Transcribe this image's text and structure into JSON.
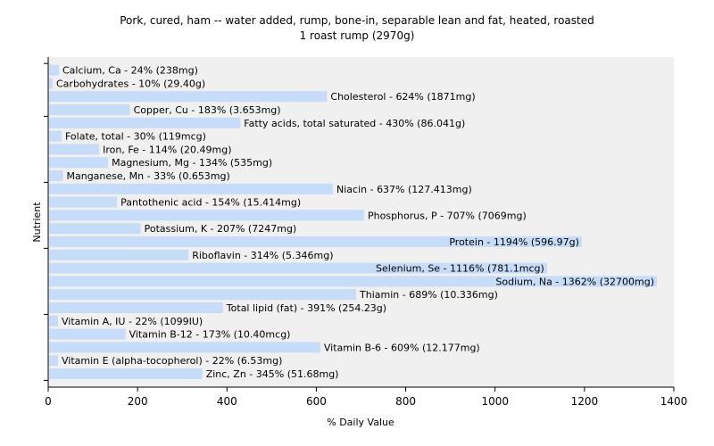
{
  "chart_data": {
    "type": "bar",
    "orientation": "horizontal",
    "title": [
      "Pork, cured, ham -- water added, rump, bone-in, separable lean and fat, heated, roasted",
      "1 roast rump (2970g)"
    ],
    "xlabel": "% Daily Value",
    "ylabel": "Nutrient",
    "xlim": [
      0,
      1400
    ],
    "xticks": [
      0,
      200,
      400,
      600,
      800,
      1000,
      1200,
      1400
    ],
    "grid": false,
    "bar_color": "#c6dcf8",
    "background": "#f0f0f0",
    "categories": [
      "Calcium, Ca",
      "Carbohydrates",
      "Cholesterol",
      "Copper, Cu",
      "Fatty acids, total saturated",
      "Folate, total",
      "Iron, Fe",
      "Magnesium, Mg",
      "Manganese, Mn",
      "Niacin",
      "Pantothenic acid",
      "Phosphorus, P",
      "Potassium, K",
      "Protein",
      "Riboflavin",
      "Selenium, Se",
      "Sodium, Na",
      "Thiamin",
      "Total lipid (fat)",
      "Vitamin A, IU",
      "Vitamin B-12",
      "Vitamin B-6",
      "Vitamin E (alpha-tocopherol)",
      "Zinc, Zn"
    ],
    "values": [
      24,
      10,
      624,
      183,
      430,
      30,
      114,
      134,
      33,
      637,
      154,
      707,
      207,
      1194,
      314,
      1116,
      1362,
      689,
      391,
      22,
      173,
      609,
      22,
      345
    ],
    "labels": [
      "Calcium, Ca - 24% (238mg)",
      "Carbohydrates - 10% (29.40g)",
      "Cholesterol - 624% (1871mg)",
      "Copper, Cu - 183% (3.653mg)",
      "Fatty acids, total saturated - 430% (86.041g)",
      "Folate, total - 30% (119mcg)",
      "Iron, Fe - 114% (20.49mg)",
      "Magnesium, Mg - 134% (535mg)",
      "Manganese, Mn - 33% (0.653mg)",
      "Niacin - 637% (127.413mg)",
      "Pantothenic acid - 154% (15.414mg)",
      "Phosphorus, P - 707% (7069mg)",
      "Potassium, K - 207% (7247mg)",
      "Protein - 1194% (596.97g)",
      "Riboflavin - 314% (5.346mg)",
      "Selenium, Se - 1116% (781.1mcg)",
      "Sodium, Na - 1362% (32700mg)",
      "Thiamin - 689% (10.336mg)",
      "Total lipid (fat) - 391% (254.23g)",
      "Vitamin A, IU - 22% (1099IU)",
      "Vitamin B-12 - 173% (10.40mcg)",
      "Vitamin B-6 - 609% (12.177mg)",
      "Vitamin E (alpha-tocopherol) - 22% (6.53mg)",
      "Zinc, Zn - 345% (51.68mg)"
    ]
  }
}
